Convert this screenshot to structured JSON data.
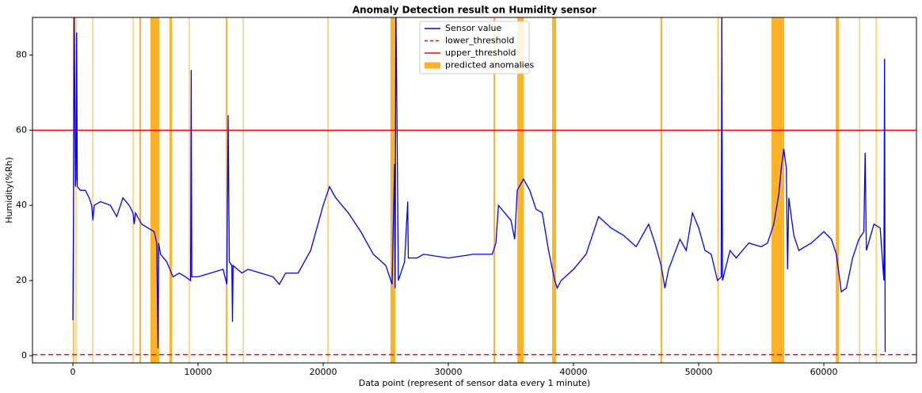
{
  "chart_data": {
    "type": "line",
    "title": "Anomaly Detection result on Humidity sensor",
    "x_label": "Data point (represent of sensor data every 1 minute)",
    "y_label": "Humidity(%Rh)",
    "xlim": [
      -3230,
      67400
    ],
    "ylim": [
      -1.9,
      90
    ],
    "xticks": [
      0,
      10000,
      20000,
      30000,
      40000,
      50000,
      60000
    ],
    "yticks": [
      0,
      20,
      40,
      60,
      80
    ],
    "series": [
      {
        "name": "Sensor value",
        "color": "#0000ff",
        "x": [
          0,
          50,
          100,
          200,
          250,
          300,
          350,
          600,
          1000,
          1300,
          1500,
          1600,
          1700,
          2200,
          3000,
          3500,
          4000,
          4500,
          4800,
          4900,
          5000,
          5500,
          6000,
          6500,
          6700,
          6800,
          6850,
          7000,
          7500,
          8000,
          8500,
          9000,
          9400,
          9450,
          9500,
          10000,
          11000,
          12000,
          12300,
          12400,
          12500,
          12700,
          12750,
          12800,
          13500,
          14000,
          15000,
          16000,
          16500,
          17000,
          18000,
          19000,
          20000,
          20500,
          21000,
          22000,
          23000,
          24000,
          25000,
          25500,
          25700,
          25750,
          25800,
          25900,
          26000,
          26500,
          26750,
          26800,
          27500,
          28000,
          30000,
          32000,
          33500,
          33800,
          34000,
          34500,
          35000,
          35300,
          35500,
          36000,
          36500,
          37000,
          37500,
          38000,
          38500,
          38700,
          39000,
          40000,
          41000,
          42000,
          43000,
          44000,
          45000,
          46000,
          46500,
          47000,
          47300,
          47600,
          48500,
          49000,
          49500,
          50000,
          50500,
          51000,
          51500,
          51800,
          51850,
          51900,
          52500,
          53000,
          54000,
          55000,
          55500,
          56000,
          56400,
          56600,
          56800,
          57000,
          57100,
          57200,
          57600,
          58000,
          59000,
          60000,
          60600,
          61000,
          61400,
          61800,
          62300,
          62800,
          63200,
          63300,
          63400,
          64000,
          64500,
          64800,
          64850,
          64900
        ],
        "values": [
          9.5,
          37,
          95,
          45,
          47,
          86,
          45,
          44,
          44,
          42,
          40,
          36,
          40,
          41,
          40,
          37,
          42,
          40,
          38,
          35,
          38,
          35,
          34,
          33,
          30,
          2,
          30,
          27,
          25,
          21,
          22,
          21,
          20,
          76,
          21,
          21,
          22,
          23,
          19,
          64,
          25,
          24,
          9,
          24,
          22,
          23,
          22,
          21,
          19,
          22,
          22,
          28,
          40,
          45,
          42,
          38,
          33,
          27,
          24,
          19,
          51,
          18,
          95,
          60,
          20,
          25,
          41,
          26,
          26,
          27,
          26,
          27,
          27,
          30,
          40,
          38,
          36,
          31,
          44,
          47,
          44,
          39,
          38,
          28,
          20,
          18,
          20,
          23,
          27,
          37,
          34,
          32,
          29,
          35,
          30,
          24,
          18,
          23,
          31,
          28,
          38,
          34,
          28,
          27,
          20,
          21,
          95,
          20,
          28,
          26,
          30,
          29,
          30,
          35,
          43,
          50,
          55,
          50,
          23,
          42,
          32,
          28,
          30,
          33,
          31,
          27,
          17,
          18,
          26,
          31,
          33,
          54,
          28,
          35,
          34,
          20,
          79,
          1
        ]
      }
    ],
    "thresholds": [
      {
        "name": "lower_threshold",
        "value": 0.3,
        "color": "#ff0000",
        "dashed": true
      },
      {
        "name": "upper_threshold",
        "value": 60,
        "color": "#ff0000",
        "dashed": false
      }
    ],
    "anomalies": {
      "name": "predicted anomalies",
      "color": "#ffa500",
      "spans": [
        [
          0,
          100
        ],
        [
          220,
          280
        ],
        [
          1550,
          1610
        ],
        [
          4780,
          4840
        ],
        [
          5320,
          5440
        ],
        [
          6200,
          6900
        ],
        [
          7720,
          7910
        ],
        [
          9270,
          9330
        ],
        [
          12220,
          12340
        ],
        [
          13580,
          13640
        ],
        [
          20350,
          20410
        ],
        [
          25380,
          25760
        ],
        [
          33610,
          33730
        ],
        [
          35510,
          36010
        ],
        [
          38290,
          38610
        ],
        [
          46960,
          47090
        ],
        [
          51520,
          51580
        ],
        [
          55820,
          56840
        ],
        [
          60950,
          61200
        ],
        [
          62820,
          62880
        ],
        [
          64150,
          64210
        ]
      ]
    }
  }
}
